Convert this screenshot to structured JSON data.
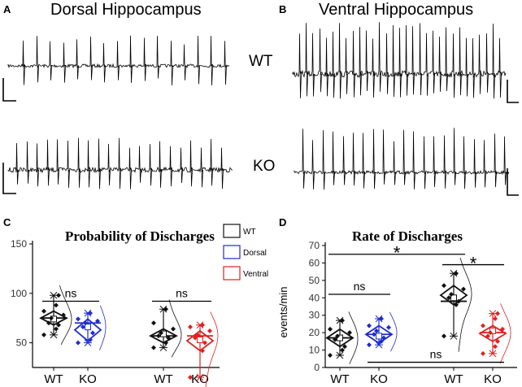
{
  "colors": {
    "wt": "#111111",
    "dorsal": "#1f2ccc",
    "ventral": "#dd2222"
  },
  "panels": {
    "A": {
      "letter": "A",
      "title": "Dorsal Hippocampus"
    },
    "B": {
      "letter": "B",
      "title": "Ventral Hippocampus"
    }
  },
  "trace_rows": {
    "wt": "WT",
    "ko": "KO"
  },
  "chart_data": [
    {
      "panel": "C",
      "type": "violin-box",
      "title": "Probability of Discharges",
      "xlabel": "",
      "ylabel": "",
      "ylim": [
        25,
        150
      ],
      "yticks": [
        "50",
        "100",
        "150"
      ],
      "categories": [
        "WT",
        "KO",
        "WT",
        "KO"
      ],
      "legend": [
        "WT",
        "Dorsal",
        "Ventral"
      ],
      "groups": [
        {
          "region": "Dorsal",
          "genotype": "WT",
          "color": "wt",
          "mean": 74,
          "median": 75,
          "q1": 68,
          "q3": 82,
          "whisker_low": 58,
          "whisker_high": 98,
          "points": [
            58,
            64,
            68,
            70,
            75,
            78,
            82,
            88,
            98
          ]
        },
        {
          "region": "Dorsal",
          "genotype": "KO",
          "color": "dorsal",
          "mean": 66,
          "median": 70,
          "q1": 52,
          "q3": 74,
          "whisker_low": 50,
          "whisker_high": 80,
          "points": [
            50,
            53,
            60,
            66,
            70,
            72,
            74,
            80
          ]
        },
        {
          "region": "Ventral",
          "genotype": "WT",
          "color": "wt",
          "mean": 59,
          "median": 57,
          "q1": 50,
          "q3": 64,
          "whisker_low": 45,
          "whisker_high": 84,
          "points": [
            45,
            50,
            55,
            57,
            60,
            64,
            70,
            84
          ]
        },
        {
          "region": "Ventral",
          "genotype": "KO",
          "color": "ventral",
          "mean": 53,
          "median": 57,
          "q1": 42,
          "q3": 62,
          "whisker_low": 15,
          "whisker_high": 68,
          "points": [
            15,
            42,
            50,
            55,
            58,
            62,
            66,
            68
          ]
        }
      ],
      "comparisons": [
        {
          "groups": [
            0,
            1
          ],
          "y": 92,
          "label": "ns"
        },
        {
          "groups": [
            2,
            3
          ],
          "y": 92,
          "label": "ns"
        }
      ]
    },
    {
      "panel": "D",
      "type": "violin-box",
      "title": "Rate of Discharges",
      "xlabel": "",
      "ylabel": "events/min",
      "ylim": [
        0,
        70
      ],
      "yticks": [
        "0",
        "10",
        "20",
        "30",
        "40",
        "50",
        "60",
        "70"
      ],
      "categories": [
        "WT",
        "KO",
        "WT",
        "KO"
      ],
      "groups": [
        {
          "region": "Dorsal",
          "genotype": "WT",
          "color": "wt",
          "mean": 17,
          "median": 17,
          "q1": 12,
          "q3": 22,
          "whisker_low": 7,
          "whisker_high": 27,
          "points": [
            7,
            10,
            12,
            16,
            18,
            20,
            22,
            27
          ]
        },
        {
          "region": "Dorsal",
          "genotype": "KO",
          "color": "dorsal",
          "mean": 18,
          "median": 19,
          "q1": 14,
          "q3": 24,
          "whisker_low": 13,
          "whisker_high": 28,
          "points": [
            13,
            15,
            17,
            19,
            21,
            23,
            24,
            28
          ]
        },
        {
          "region": "Ventral",
          "genotype": "WT",
          "color": "wt",
          "mean": 40,
          "median": 38,
          "q1": 36,
          "q3": 47,
          "whisker_low": 18,
          "whisker_high": 54,
          "points": [
            18,
            36,
            38,
            40,
            42,
            45,
            47,
            54
          ]
        },
        {
          "region": "Ventral",
          "genotype": "KO",
          "color": "ventral",
          "mean": 21,
          "median": 20,
          "q1": 15,
          "q3": 24,
          "whisker_low": 8,
          "whisker_high": 31,
          "points": [
            8,
            12,
            15,
            18,
            20,
            22,
            24,
            28,
            31
          ]
        }
      ],
      "comparisons": [
        {
          "groups": [
            0,
            2
          ],
          "y": 65,
          "label": "*"
        },
        {
          "groups": [
            2,
            3
          ],
          "y": 59,
          "label": "*"
        },
        {
          "groups": [
            0,
            1
          ],
          "y": 42,
          "label": "ns"
        },
        {
          "groups": [
            1,
            3
          ],
          "y": 3,
          "label": "ns"
        }
      ]
    }
  ]
}
